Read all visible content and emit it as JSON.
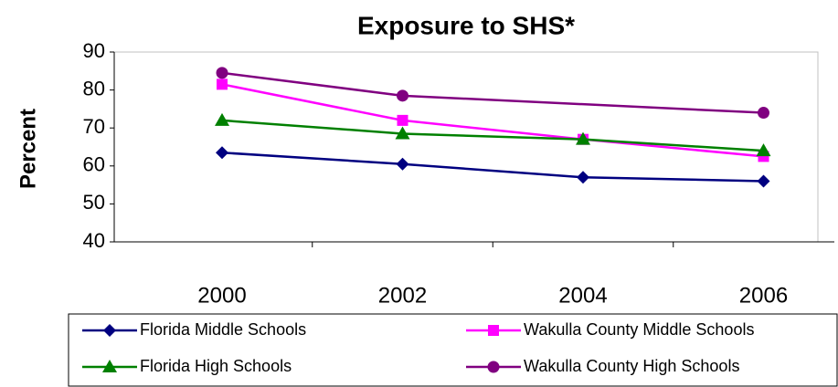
{
  "chart_data": {
    "type": "line",
    "title": "Exposure to SHS*",
    "y_label": "Percent",
    "categories": [
      "2000",
      "2002",
      "2004",
      "2006"
    ],
    "series": [
      {
        "name": "Florida Middle Schools",
        "color": "#000080",
        "marker": "diamond",
        "values": [
          63.5,
          60.5,
          57,
          56
        ]
      },
      {
        "name": "Wakulla County Middle Schools",
        "color": "#ff00ff",
        "marker": "square",
        "values": [
          81.5,
          72,
          67,
          62.5
        ]
      },
      {
        "name": "Florida High Schools",
        "color": "#008000",
        "marker": "triangle",
        "values": [
          72,
          68.5,
          67,
          64
        ]
      },
      {
        "name": "Wakulla County High Schools",
        "color": "#800080",
        "marker": "circle",
        "values": [
          84.5,
          78.5,
          null,
          74
        ]
      }
    ],
    "connect_gaps": true,
    "ylim": [
      40,
      90
    ],
    "yticks": [
      40,
      50,
      60,
      70,
      80,
      90
    ],
    "grid": false
  }
}
